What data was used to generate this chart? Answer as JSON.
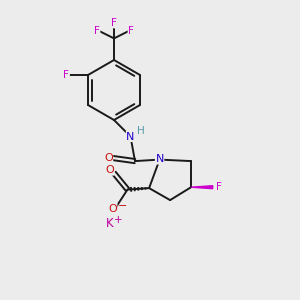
{
  "background_color": "#ececec",
  "bond_color": "#1a1a1a",
  "atom_colors": {
    "F_ring": "#cc00cc",
    "F_cf3": "#cc00cc",
    "N": "#2200cc",
    "O": "#cc1111",
    "H": "#5599aa",
    "K": "#bb0099"
  },
  "figsize": [
    3.0,
    3.0
  ],
  "dpi": 100,
  "xlim": [
    0,
    10
  ],
  "ylim": [
    0,
    10
  ]
}
